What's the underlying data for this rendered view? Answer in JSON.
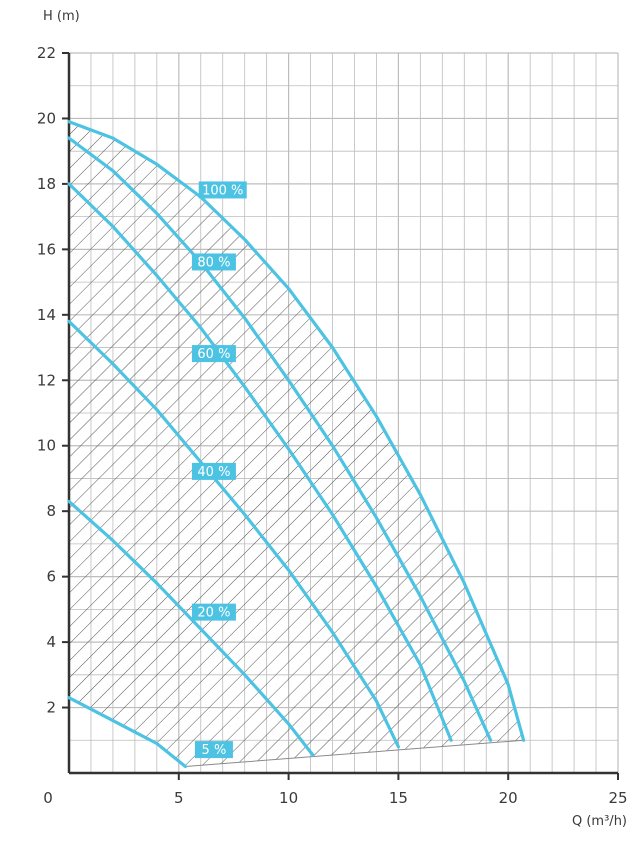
{
  "chart_data": {
    "type": "line",
    "xlabel": "Q (m³/h)",
    "ylabel": "H (m)",
    "xlim": [
      0,
      25
    ],
    "ylim": [
      0,
      22
    ],
    "x_ticks": [
      "0",
      "5",
      "10",
      "15",
      "20",
      "25"
    ],
    "y_ticks": [
      "2",
      "4",
      "6",
      "8",
      "10",
      "12",
      "14",
      "16",
      "18",
      "20",
      "22"
    ],
    "grid": true,
    "series_color": "#4dc3e3",
    "label_bg_color": "#4dc3e3",
    "hatch_color": "#555555",
    "series": [
      {
        "name": "100 %",
        "points": [
          [
            0,
            19.9
          ],
          [
            2,
            19.4
          ],
          [
            4,
            18.6
          ],
          [
            6,
            17.6
          ],
          [
            8,
            16.3
          ],
          [
            10,
            14.8
          ],
          [
            12,
            13.0
          ],
          [
            14,
            10.9
          ],
          [
            16,
            8.5
          ],
          [
            18,
            5.8
          ],
          [
            20,
            2.7
          ],
          [
            20.7,
            1.0
          ]
        ],
        "label_at": [
          7.0,
          17.8
        ]
      },
      {
        "name": "80 %",
        "points": [
          [
            0,
            19.4
          ],
          [
            2,
            18.4
          ],
          [
            4,
            17.1
          ],
          [
            6,
            15.6
          ],
          [
            8,
            13.9
          ],
          [
            10,
            12.0
          ],
          [
            12,
            10.0
          ],
          [
            14,
            7.8
          ],
          [
            16,
            5.4
          ],
          [
            18,
            2.8
          ],
          [
            19.2,
            1.0
          ]
        ],
        "label_at": [
          6.6,
          15.6
        ]
      },
      {
        "name": "60 %",
        "points": [
          [
            0,
            18.0
          ],
          [
            2,
            16.7
          ],
          [
            4,
            15.2
          ],
          [
            6,
            13.6
          ],
          [
            8,
            11.8
          ],
          [
            10,
            9.9
          ],
          [
            12,
            7.9
          ],
          [
            14,
            5.7
          ],
          [
            16,
            3.3
          ],
          [
            17.4,
            1.0
          ]
        ],
        "label_at": [
          6.6,
          12.8
        ]
      },
      {
        "name": "40 %",
        "points": [
          [
            0,
            13.8
          ],
          [
            2,
            12.5
          ],
          [
            4,
            11.1
          ],
          [
            6,
            9.5
          ],
          [
            8,
            7.9
          ],
          [
            10,
            6.2
          ],
          [
            12,
            4.3
          ],
          [
            14,
            2.2
          ],
          [
            15.0,
            0.8
          ]
        ],
        "label_at": [
          6.6,
          9.2
        ]
      },
      {
        "name": "20 %",
        "points": [
          [
            0,
            8.3
          ],
          [
            2,
            7.1
          ],
          [
            4,
            5.8
          ],
          [
            6,
            4.4
          ],
          [
            8,
            3.0
          ],
          [
            10,
            1.5
          ],
          [
            11.1,
            0.55
          ]
        ],
        "label_at": [
          6.6,
          4.9
        ]
      },
      {
        "name": "5 %",
        "points": [
          [
            0,
            2.3
          ],
          [
            2,
            1.6
          ],
          [
            4,
            0.9
          ],
          [
            5.3,
            0.2
          ]
        ],
        "label_at": [
          6.6,
          0.7
        ]
      }
    ]
  }
}
